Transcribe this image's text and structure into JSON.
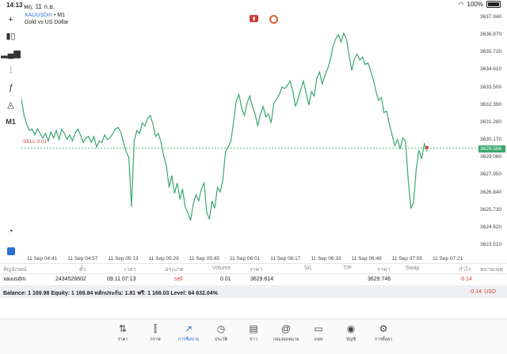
{
  "status": {
    "time": "14:13",
    "date": "พฤ. 11 ก.ย.",
    "battery": "100%"
  },
  "chart": {
    "symbol": "XAUUSDm",
    "timeframe": "• M1",
    "description": "Gold vs US Dollar",
    "sell_label": "SELL 0.01",
    "current_price": "3629.586",
    "timeframe_button": "M1"
  },
  "chart_data": {
    "type": "line",
    "price_ticks": [
      "3637.940",
      "3636.870",
      "3635.720",
      "3634.610",
      "3633.500",
      "3632.390",
      "3631.280",
      "3630.170",
      "3629.060",
      "3627.950",
      "3626.840",
      "3625.730",
      "3624.620",
      "3623.510"
    ],
    "time_ticks": [
      "11 Sep 04:41",
      "11 Sep 04:57",
      "11 Sep 05:13",
      "11 Sep 05:29",
      "11 Sep 05:45",
      "11 Sep 06:01",
      "11 Sep 06:17",
      "11 Sep 06:33",
      "11 Sep 06:49",
      "11 Sep 07:05",
      "11 Sep 07:21"
    ],
    "series": [
      {
        "color": "#3aa76d",
        "values": [
          3632.9,
          3631.8,
          3631.2,
          3630.8,
          3630.9,
          3630.5,
          3630.9,
          3630.6,
          3630.3,
          3630.6,
          3630.1,
          3630.7,
          3630.3,
          3630.8,
          3630.2,
          3630.9,
          3630.6,
          3630.2,
          3630.5,
          3630.1,
          3630.6,
          3630.9,
          3630.5,
          3630.0,
          3630.3,
          3630.4,
          3630.0,
          3630.4,
          3629.7,
          3630.1,
          3630.0,
          3630.5,
          3630.2,
          3630.3,
          3630.6,
          3630.9,
          3631.0,
          3630.7,
          3630.0,
          3629.4,
          3629.0,
          3625.7,
          3630.1,
          3630.8,
          3630.6,
          3631.3,
          3631.1,
          3631.6,
          3631.8,
          3631.2,
          3630.4,
          3630.6,
          3630.0,
          3629.1,
          3628.4,
          3627.0,
          3627.8,
          3626.6,
          3627.3,
          3626.2,
          3626.9,
          3625.7,
          3625.3,
          3624.8,
          3625.9,
          3626.5,
          3626.1,
          3626.9,
          3627.3,
          3625.3,
          3624.9,
          3626.1,
          3625.6,
          3627.0,
          3626.7,
          3627.5,
          3629.4,
          3629.7,
          3630.1,
          3631.4,
          3632.8,
          3633.2,
          3632.3,
          3631.8,
          3632.6,
          3633.1,
          3632.4,
          3631.9,
          3631.1,
          3631.9,
          3632.4,
          3631.7,
          3631.9,
          3631.3,
          3632.6,
          3632.9,
          3633.2,
          3633.7,
          3633.6,
          3633.8,
          3634.1,
          3633.5,
          3632.4,
          3632.9,
          3633.5,
          3634.1,
          3633.3,
          3632.5,
          3633.4,
          3633.1,
          3634.3,
          3634.7,
          3633.9,
          3634.5,
          3634.9,
          3635.5,
          3636.4,
          3636.9,
          3637.2,
          3636.7,
          3637.3,
          3636.9,
          3635.8,
          3634.8,
          3635.6,
          3635.9,
          3635.5,
          3635.7,
          3635.2,
          3635.3,
          3634.8,
          3634.2,
          3633.4,
          3632.8,
          3633.0,
          3632.0,
          3632.1,
          3631.2,
          3630.5,
          3629.8,
          3630.2,
          3629.6,
          3630.3,
          3630.1,
          3627.5,
          3625.6,
          3626.0,
          3628.2,
          3629.5,
          3628.9,
          3629.9,
          3629.4
        ]
      }
    ],
    "ylim": [
      3623.0,
      3638.4
    ]
  },
  "positions": {
    "headers": [
      "สัญลักษณ์",
      "ตั๋ว",
      "เวลา",
      "ประเภท",
      "Volume",
      "ราคา",
      "S/L",
      "T/P",
      "ราคา",
      "Swap",
      "กำไร",
      "หมายเหตุ"
    ],
    "rows": [
      {
        "symbol": "xauusdm",
        "ticket": "2434526602",
        "time": "09.11 07:13",
        "type": "sell",
        "volume": "0.01",
        "open_price": "3629.614",
        "sl": "",
        "tp": "",
        "price": "3629.746",
        "swap": "",
        "profit": "-0.14",
        "comment": ""
      }
    ]
  },
  "balance": {
    "text": "Balance: 1 169.98 Equity: 1 169.84 หลักประกัน: 1.81 ฟรี: 1 168.03 Level: 64 632.04%",
    "profit": "-0.14",
    "currency": "USD"
  },
  "nav": [
    {
      "icon": "quotes-icon",
      "label": "ราคา",
      "glyph": "⇅"
    },
    {
      "icon": "chart-icon",
      "label": "กราฟ",
      "glyph": "⫿"
    },
    {
      "icon": "trade-icon",
      "label": "การซื้อขาย",
      "glyph": "↗"
    },
    {
      "icon": "history-icon",
      "label": "ประวัติ",
      "glyph": "◷"
    },
    {
      "icon": "news-icon",
      "label": "ข่าว",
      "glyph": "▤"
    },
    {
      "icon": "mailbox-icon",
      "label": "กล่องจดหมาย",
      "glyph": "@"
    },
    {
      "icon": "chat-icon",
      "label": "แชท",
      "glyph": "▭"
    },
    {
      "icon": "accounts-icon",
      "label": "บัญชี",
      "glyph": "◉"
    },
    {
      "icon": "settings-icon",
      "label": "การตั้งค่า",
      "glyph": "⚙"
    }
  ],
  "colors": {
    "accent": "#2c6fd6",
    "line": "#3aa76d",
    "sell": "#d23b3b"
  }
}
